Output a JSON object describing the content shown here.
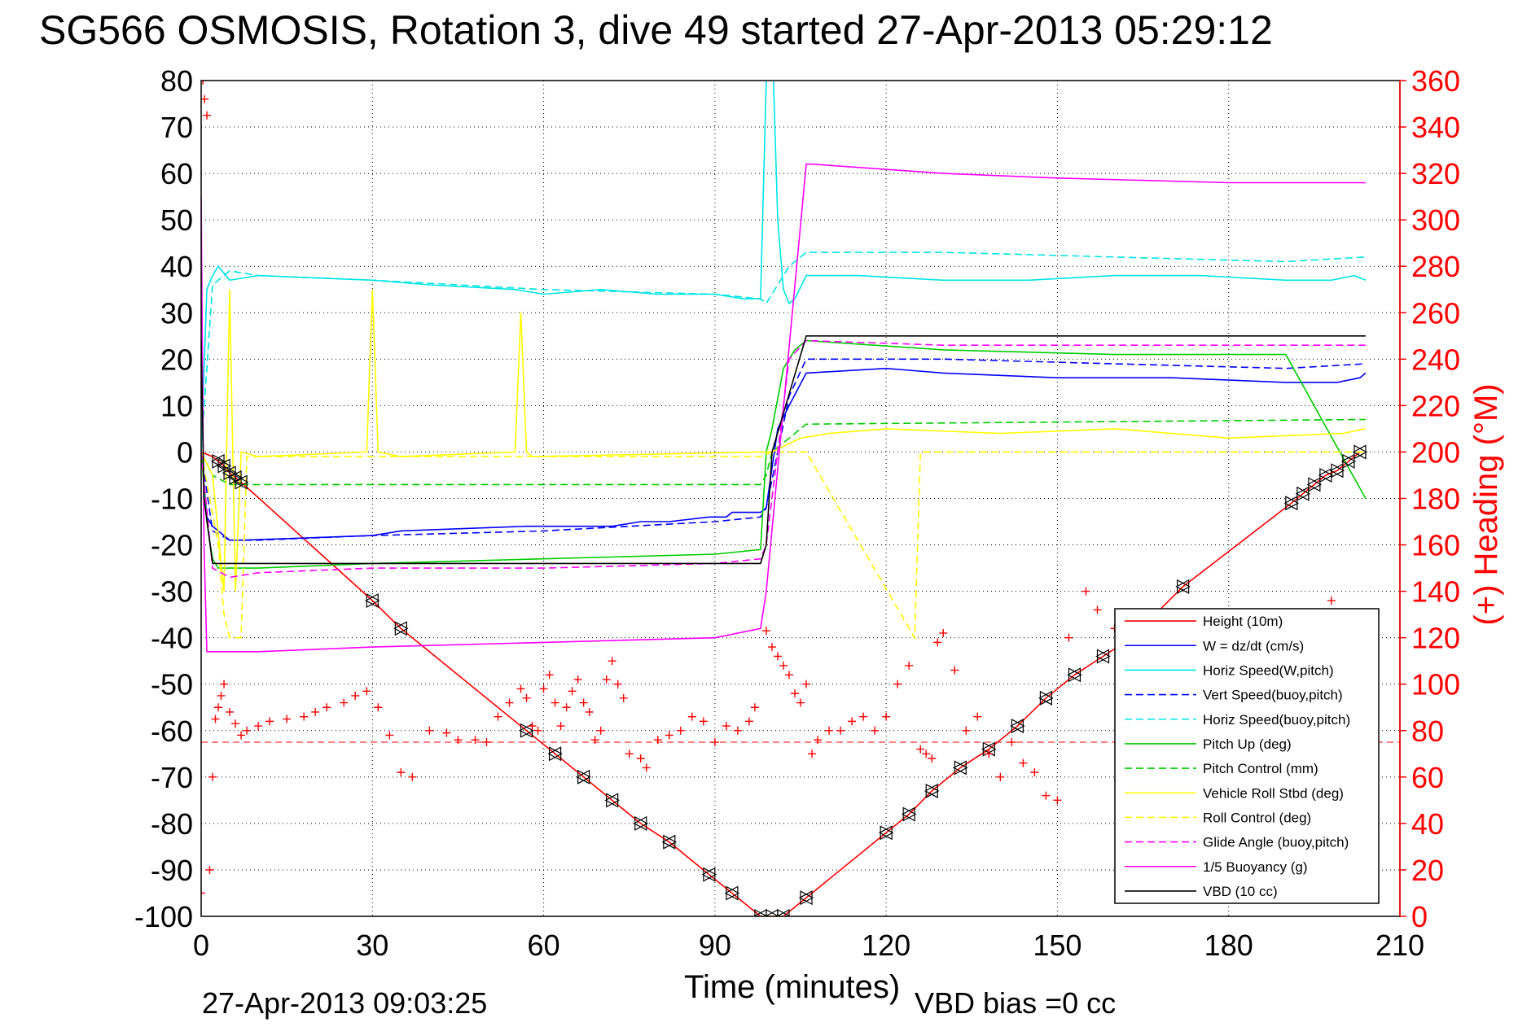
{
  "chart_data": {
    "type": "line",
    "title": "SG566 OSMOSIS, Rotation 3, dive 49 started 27-Apr-2013 05:29:12",
    "xlabel": "Time (minutes)",
    "ylabel_right": "(+) Heading (°M)",
    "footer_left": "27-Apr-2013 09:03:25",
    "footer_right": "VBD bias =0 cc",
    "xlim": [
      0,
      210
    ],
    "ylim": [
      -100,
      80
    ],
    "ylim_right": [
      0,
      360
    ],
    "xticks": [
      "0",
      "30",
      "60",
      "90",
      "120",
      "150",
      "180",
      "210"
    ],
    "yticks": [
      "80",
      "70",
      "60",
      "50",
      "40",
      "30",
      "20",
      "10",
      "0",
      "-10",
      "-20",
      "-30",
      "-40",
      "-50",
      "-60",
      "-70",
      "-80",
      "-90",
      "-100"
    ],
    "yticks_right": [
      "360",
      "340",
      "320",
      "300",
      "280",
      "260",
      "240",
      "220",
      "200",
      "180",
      "160",
      "140",
      "120",
      "100",
      "80",
      "60",
      "40",
      "20",
      "0"
    ],
    "grid": true,
    "legend_position": "lower-right",
    "series": [
      {
        "name": "Height (10m)",
        "color": "#ff0000",
        "style": "solid",
        "x": [
          0,
          1,
          2,
          3,
          4,
          5,
          6,
          7,
          30,
          35,
          57,
          62,
          67,
          72,
          77,
          82,
          89,
          93,
          98,
          100,
          102,
          106,
          120,
          124,
          128,
          133,
          138,
          143,
          148,
          153,
          158,
          163,
          172,
          191,
          193,
          195,
          197,
          199,
          201,
          203
        ],
        "y": [
          0,
          -0.5,
          -1,
          -2,
          -3,
          -4.5,
          -5.5,
          -6.5,
          -32,
          -38,
          -60,
          -65,
          -70,
          -75,
          -80,
          -84,
          -91,
          -95,
          -100,
          -100,
          -100,
          -96,
          -82,
          -78,
          -73,
          -68,
          -64,
          -59,
          -53,
          -48,
          -44,
          -40,
          -29,
          -11,
          -9,
          -7,
          -5,
          -4,
          -2,
          0
        ]
      },
      {
        "name": "W = dz/dt (cm/s)",
        "color": "#0000ff",
        "style": "solid",
        "x": [
          0,
          1,
          2,
          3,
          5,
          7,
          30,
          35,
          57,
          62,
          67,
          72,
          77,
          82,
          89,
          92,
          93,
          98,
          99,
          101,
          103,
          106,
          120,
          130,
          150,
          170,
          190,
          199,
          203,
          204
        ],
        "y": [
          0,
          -14,
          -16,
          -17,
          -19,
          -19,
          -18,
          -17,
          -16,
          -16,
          -16,
          -16,
          -15,
          -15,
          -14,
          -14,
          -13,
          -13,
          -12,
          5,
          10,
          17,
          18,
          17,
          16,
          16,
          15,
          15,
          16,
          17
        ]
      },
      {
        "name": "Horiz Speed(W,pitch)",
        "color": "#00e5e5",
        "style": "solid",
        "x": [
          0,
          1,
          2,
          3,
          5,
          10,
          30,
          40,
          55,
          60,
          70,
          80,
          90,
          95,
          98,
          99,
          100,
          101,
          102,
          103,
          104,
          106,
          115,
          130,
          145,
          160,
          175,
          190,
          198,
          202,
          204
        ],
        "y": [
          0,
          35,
          38,
          40,
          37,
          38,
          37,
          36,
          35,
          34,
          35,
          34,
          34,
          33,
          33,
          80,
          90,
          50,
          35,
          32,
          33,
          38,
          38,
          37,
          37,
          38,
          38,
          37,
          37,
          38,
          37
        ]
      },
      {
        "name": "Vert Speed(buoy,pitch)",
        "color": "#0000ff",
        "style": "dashed",
        "x": [
          0,
          2,
          5,
          10,
          30,
          60,
          90,
          98,
          99,
          103,
          106,
          130,
          160,
          190,
          204
        ],
        "y": [
          0,
          -17,
          -19,
          -19,
          -18,
          -17,
          -15,
          -14,
          -12,
          12,
          20,
          20,
          19,
          18,
          19
        ]
      },
      {
        "name": "Horiz Speed(buoy,pitch)",
        "color": "#00e5e5",
        "style": "dashed",
        "x": [
          0,
          2,
          5,
          10,
          30,
          60,
          90,
          98,
          99,
          103,
          106,
          130,
          160,
          190,
          204
        ],
        "y": [
          0,
          36,
          39,
          38,
          37,
          35,
          34,
          33,
          32,
          40,
          43,
          43,
          42,
          41,
          42
        ]
      },
      {
        "name": "Pitch Up (deg)",
        "color": "#00cc00",
        "style": "solid",
        "x": [
          0,
          1,
          2,
          3,
          5,
          10,
          30,
          60,
          90,
          98,
          99,
          100,
          102,
          104,
          106,
          130,
          160,
          190,
          204
        ],
        "y": [
          0,
          -15,
          -23,
          -25,
          -25,
          -25,
          -24,
          -23,
          -22,
          -21,
          0,
          5,
          18,
          22,
          24,
          22,
          21,
          21,
          -10
        ]
      },
      {
        "name": "Pitch Control (mm)",
        "color": "#00cc00",
        "style": "dashed",
        "x": [
          0,
          2,
          5,
          98,
          99,
          100,
          105,
          106,
          204
        ],
        "y": [
          0,
          -5,
          -7,
          -7,
          -5,
          0,
          5,
          6,
          7
        ]
      },
      {
        "name": "Vehicle Roll Stbd (deg)",
        "color": "#ffff00",
        "style": "solid",
        "x": [
          0,
          2,
          4,
          5,
          6,
          7,
          10,
          29,
          30,
          31,
          35,
          55,
          56,
          57,
          58,
          98,
          100,
          105,
          110,
          120,
          140,
          160,
          180,
          200,
          204
        ],
        "y": [
          0,
          -5,
          -30,
          35,
          -30,
          0,
          -1,
          0,
          35,
          0,
          -1,
          0,
          30,
          0,
          -1,
          0,
          0,
          3,
          4,
          5,
          4,
          5,
          3,
          4,
          5
        ]
      },
      {
        "name": "Roll Control (deg)",
        "color": "#ffff00",
        "style": "dashed",
        "x": [
          0,
          3,
          4,
          5,
          7,
          8,
          30,
          31,
          50,
          51,
          52,
          98,
          100,
          106,
          125,
          126,
          127,
          204
        ],
        "y": [
          0,
          -20,
          -35,
          -40,
          -40,
          -1,
          -1,
          -1,
          -1,
          -1,
          -1,
          -1,
          0,
          0,
          -40,
          0,
          0,
          0
        ]
      },
      {
        "name": "Glide Angle (buoy,pitch)",
        "color": "#ff00ff",
        "style": "dashed",
        "x": [
          0,
          2,
          5,
          10,
          30,
          60,
          90,
          98,
          99,
          103,
          106,
          130,
          160,
          190,
          204
        ],
        "y": [
          0,
          -25,
          -27,
          -26,
          -25,
          -25,
          -24,
          -23,
          -20,
          20,
          24,
          23,
          23,
          23,
          23
        ]
      },
      {
        "name": "1/5 Buoyancy (g)",
        "color": "#ff00ff",
        "style": "solid",
        "x": [
          0,
          0.5,
          1,
          2,
          10,
          30,
          60,
          90,
          98,
          99,
          106,
          107,
          130,
          150,
          180,
          204
        ],
        "y": [
          55,
          -20,
          -43,
          -43,
          -43,
          -42,
          -41,
          -40,
          -38,
          -30,
          62,
          62,
          60,
          59,
          58,
          58
        ]
      },
      {
        "name": "VBD (10 cc)",
        "color": "#000000",
        "style": "solid",
        "x": [
          0,
          0.5,
          2,
          5,
          30,
          60,
          98,
          99,
          100,
          106,
          204
        ],
        "y": [
          24,
          -10,
          -24,
          -24,
          -24,
          -24,
          -24,
          -20,
          0,
          25,
          25
        ]
      }
    ],
    "heading": {
      "name": "(+) Heading",
      "color": "#ff0000",
      "marker": "+",
      "reference_line_deg": 75,
      "x": [
        0,
        0.3,
        0.6,
        1,
        1.5,
        2,
        2.5,
        3,
        3.5,
        4,
        5,
        6,
        7,
        8,
        10,
        12,
        15,
        18,
        20,
        22,
        25,
        27,
        29,
        31,
        33,
        35,
        37,
        40,
        43,
        45,
        48,
        50,
        52,
        54,
        56,
        57,
        58,
        59,
        60,
        61,
        62,
        63,
        64,
        65,
        66,
        67,
        68,
        69,
        70,
        71,
        72,
        73,
        74,
        75,
        77,
        78,
        80,
        82,
        84,
        86,
        88,
        90,
        92,
        94,
        96,
        97,
        99,
        100,
        101,
        102,
        103,
        104,
        105,
        106,
        107,
        108,
        110,
        112,
        114,
        116,
        118,
        120,
        122,
        124,
        126,
        127,
        128,
        129,
        130,
        132,
        134,
        136,
        138,
        140,
        142,
        144,
        146,
        148,
        150,
        152,
        155,
        157,
        160,
        162,
        165,
        168,
        170,
        172,
        175,
        178,
        180,
        182,
        185,
        188,
        190,
        192,
        195,
        198,
        200,
        202,
        204
      ],
      "y": [
        10,
        360,
        352,
        345,
        20,
        60,
        85,
        90,
        95,
        100,
        88,
        83,
        78,
        80,
        82,
        84,
        85,
        86,
        88,
        90,
        92,
        95,
        97,
        90,
        78,
        62,
        60,
        80,
        79,
        76,
        76,
        75,
        86,
        92,
        98,
        94,
        82,
        80,
        98,
        104,
        92,
        82,
        90,
        97,
        102,
        92,
        88,
        76,
        80,
        102,
        110,
        100,
        94,
        70,
        68,
        64,
        76,
        78,
        80,
        86,
        84,
        75,
        82,
        80,
        84,
        90,
        123,
        116,
        112,
        108,
        104,
        96,
        92,
        100,
        70,
        76,
        80,
        80,
        84,
        86,
        80,
        86,
        100,
        108,
        72,
        70,
        68,
        118,
        122,
        106,
        80,
        86,
        70,
        60,
        75,
        66,
        62,
        52,
        50,
        120,
        140,
        132,
        124,
        58,
        62,
        120,
        126,
        98,
        112,
        118,
        104,
        96,
        124,
        128,
        112,
        100,
        130,
        136,
        118,
        112,
        104
      ]
    }
  },
  "legend_label": "legend"
}
